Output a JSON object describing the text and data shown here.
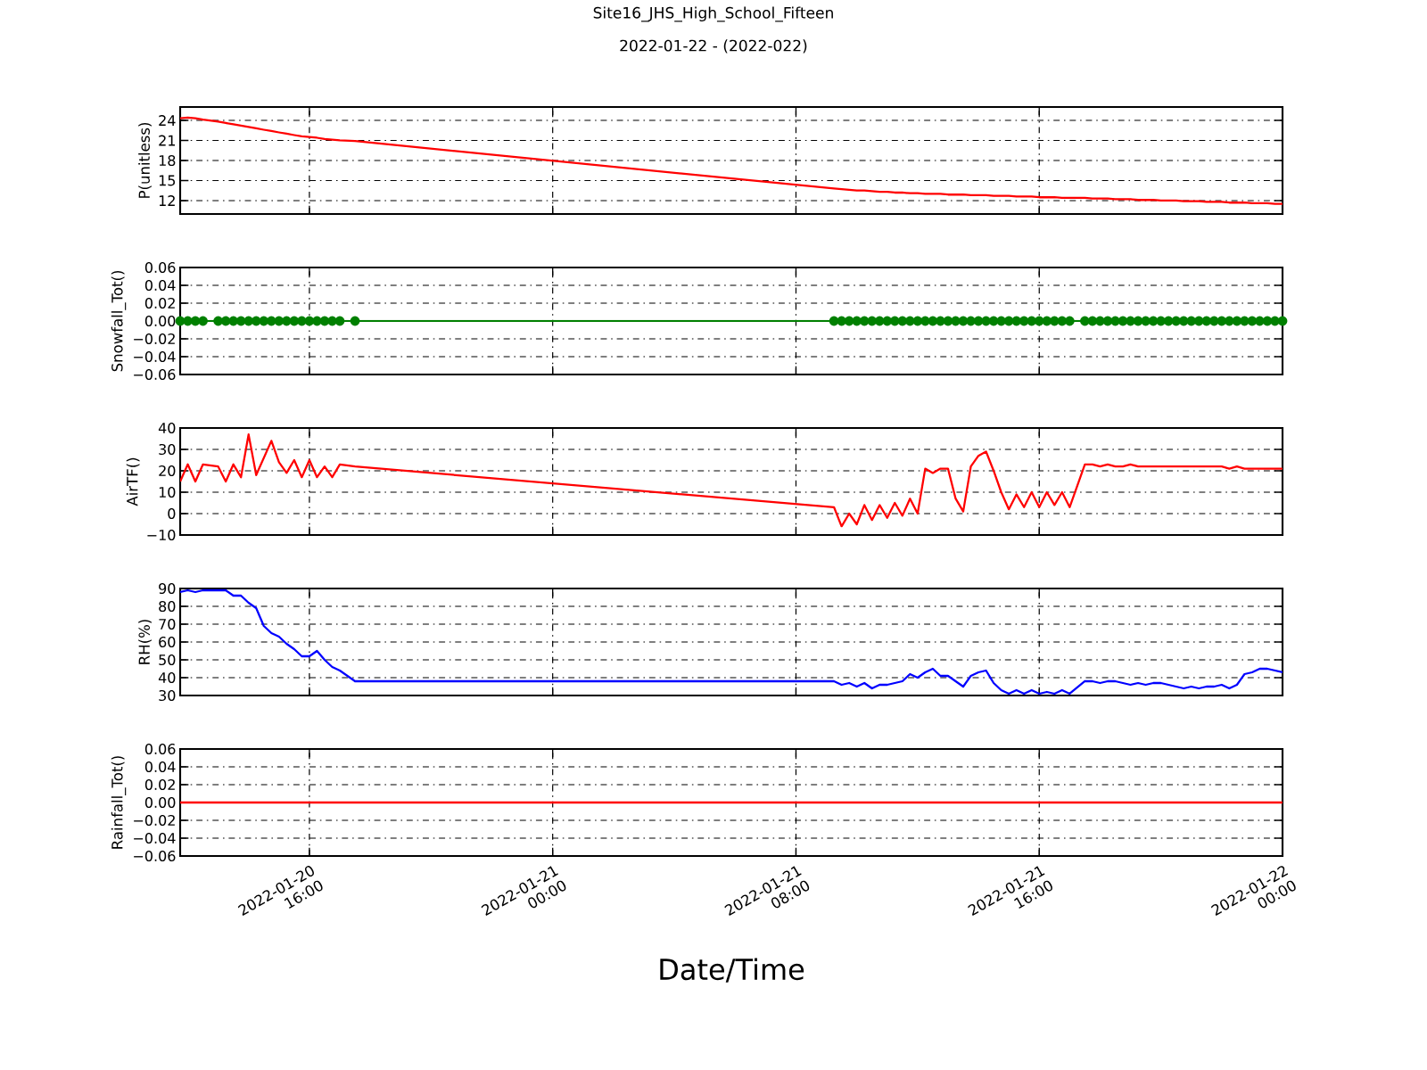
{
  "chart_data": [
    {
      "type": "line",
      "title": "Site16_JHS_High_School_Fifteen",
      "subtitle": "2022-01-22 - (2022-022)",
      "ylabel": "P(unitless)",
      "x": [
        "2022-01-20T11:45",
        "2022-01-20T12:00",
        "2022-01-20T12:15",
        "2022-01-20T12:30",
        "2022-01-20T13:00",
        "2022-01-20T13:15",
        "2022-01-20T13:30",
        "2022-01-20T13:45",
        "2022-01-20T14:00",
        "2022-01-20T14:15",
        "2022-01-20T14:30",
        "2022-01-20T14:45",
        "2022-01-20T15:00",
        "2022-01-20T15:15",
        "2022-01-20T15:30",
        "2022-01-20T15:45",
        "2022-01-20T16:00",
        "2022-01-20T16:15",
        "2022-01-20T16:30",
        "2022-01-20T16:45",
        "2022-01-20T17:00",
        "2022-01-20T17:30",
        "2022-01-21T09:15",
        "2022-01-21T09:30",
        "2022-01-21T09:45",
        "2022-01-21T10:00",
        "2022-01-21T10:15",
        "2022-01-21T10:30",
        "2022-01-21T10:45",
        "2022-01-21T11:00",
        "2022-01-21T11:15",
        "2022-01-21T11:30",
        "2022-01-21T11:45",
        "2022-01-21T12:00",
        "2022-01-21T12:15",
        "2022-01-21T12:30",
        "2022-01-21T12:45",
        "2022-01-21T13:00",
        "2022-01-21T13:15",
        "2022-01-21T13:30",
        "2022-01-21T13:45",
        "2022-01-21T14:00",
        "2022-01-21T14:15",
        "2022-01-21T14:30",
        "2022-01-21T14:45",
        "2022-01-21T15:00",
        "2022-01-21T15:15",
        "2022-01-21T15:30",
        "2022-01-21T15:45",
        "2022-01-21T16:00",
        "2022-01-21T16:15",
        "2022-01-21T16:30",
        "2022-01-21T16:45",
        "2022-01-21T17:00",
        "2022-01-21T17:30",
        "2022-01-21T17:45",
        "2022-01-21T18:00",
        "2022-01-21T18:15",
        "2022-01-21T18:30",
        "2022-01-21T18:45",
        "2022-01-21T19:00",
        "2022-01-21T19:15",
        "2022-01-21T19:30",
        "2022-01-21T19:45",
        "2022-01-21T20:00",
        "2022-01-21T20:15",
        "2022-01-21T20:30",
        "2022-01-21T20:45",
        "2022-01-21T21:00",
        "2022-01-21T21:15",
        "2022-01-21T21:30",
        "2022-01-21T21:45",
        "2022-01-21T22:00",
        "2022-01-21T22:15",
        "2022-01-21T22:30",
        "2022-01-21T22:45",
        "2022-01-21T23:00",
        "2022-01-21T23:15",
        "2022-01-21T23:30",
        "2022-01-21T23:45",
        "2022-01-22T00:00"
      ],
      "series": [
        {
          "color": "#ff0000",
          "values": [
            24.3,
            24.4,
            24.3,
            24.1,
            23.8,
            23.6,
            23.4,
            23.2,
            23.0,
            22.8,
            22.6,
            22.4,
            22.2,
            22.0,
            21.8,
            21.6,
            21.5,
            21.4,
            21.2,
            21.1,
            21.0,
            20.9,
            13.8,
            13.7,
            13.6,
            13.5,
            13.5,
            13.4,
            13.3,
            13.3,
            13.2,
            13.2,
            13.1,
            13.1,
            13.0,
            13.0,
            13.0,
            12.9,
            12.9,
            12.9,
            12.8,
            12.8,
            12.8,
            12.7,
            12.7,
            12.7,
            12.6,
            12.6,
            12.6,
            12.5,
            12.5,
            12.5,
            12.4,
            12.4,
            12.4,
            12.3,
            12.3,
            12.3,
            12.2,
            12.2,
            12.2,
            12.1,
            12.1,
            12.1,
            12.0,
            12.0,
            12.0,
            11.9,
            11.9,
            11.9,
            11.8,
            11.8,
            11.8,
            11.7,
            11.7,
            11.7,
            11.6,
            11.6,
            11.6,
            11.5,
            11.5
          ]
        }
      ],
      "xlim": [
        "2022-01-20T11:45",
        "2022-01-22T00:00"
      ],
      "xticks": [
        "2022-01-20T16:00",
        "2022-01-21T00:00",
        "2022-01-21T08:00",
        "2022-01-21T16:00",
        "2022-01-22T00:00"
      ],
      "ylim": [
        10,
        26
      ],
      "yticks": [
        12,
        15,
        18,
        21,
        24
      ],
      "grid": true,
      "tick_labels": "y"
    },
    {
      "type": "line",
      "ylabel": "Snowfall_Tot()",
      "marker": "circle",
      "x": [
        "2022-01-20T11:45",
        "2022-01-20T12:00",
        "2022-01-20T12:15",
        "2022-01-20T12:30",
        "2022-01-20T13:00",
        "2022-01-20T13:15",
        "2022-01-20T13:30",
        "2022-01-20T13:45",
        "2022-01-20T14:00",
        "2022-01-20T14:15",
        "2022-01-20T14:30",
        "2022-01-20T14:45",
        "2022-01-20T15:00",
        "2022-01-20T15:15",
        "2022-01-20T15:30",
        "2022-01-20T15:45",
        "2022-01-20T16:00",
        "2022-01-20T16:15",
        "2022-01-20T16:30",
        "2022-01-20T16:45",
        "2022-01-20T17:00",
        "2022-01-20T17:30",
        "2022-01-21T09:15",
        "2022-01-21T09:30",
        "2022-01-21T09:45",
        "2022-01-21T10:00",
        "2022-01-21T10:15",
        "2022-01-21T10:30",
        "2022-01-21T10:45",
        "2022-01-21T11:00",
        "2022-01-21T11:15",
        "2022-01-21T11:30",
        "2022-01-21T11:45",
        "2022-01-21T12:00",
        "2022-01-21T12:15",
        "2022-01-21T12:30",
        "2022-01-21T12:45",
        "2022-01-21T13:00",
        "2022-01-21T13:15",
        "2022-01-21T13:30",
        "2022-01-21T13:45",
        "2022-01-21T14:00",
        "2022-01-21T14:15",
        "2022-01-21T14:30",
        "2022-01-21T14:45",
        "2022-01-21T15:00",
        "2022-01-21T15:15",
        "2022-01-21T15:30",
        "2022-01-21T15:45",
        "2022-01-21T16:00",
        "2022-01-21T16:15",
        "2022-01-21T16:30",
        "2022-01-21T16:45",
        "2022-01-21T17:00",
        "2022-01-21T17:30",
        "2022-01-21T17:45",
        "2022-01-21T18:00",
        "2022-01-21T18:15",
        "2022-01-21T18:30",
        "2022-01-21T18:45",
        "2022-01-21T19:00",
        "2022-01-21T19:15",
        "2022-01-21T19:30",
        "2022-01-21T19:45",
        "2022-01-21T20:00",
        "2022-01-21T20:15",
        "2022-01-21T20:30",
        "2022-01-21T20:45",
        "2022-01-21T21:00",
        "2022-01-21T21:15",
        "2022-01-21T21:30",
        "2022-01-21T21:45",
        "2022-01-21T22:00",
        "2022-01-21T22:15",
        "2022-01-21T22:30",
        "2022-01-21T22:45",
        "2022-01-21T23:00",
        "2022-01-21T23:15",
        "2022-01-21T23:30",
        "2022-01-21T23:45",
        "2022-01-22T00:00"
      ],
      "series": [
        {
          "color": "#008000",
          "values": [
            0,
            0,
            0,
            0,
            0,
            0,
            0,
            0,
            0,
            0,
            0,
            0,
            0,
            0,
            0,
            0,
            0,
            0,
            0,
            0,
            0,
            0,
            0,
            0,
            0,
            0,
            0,
            0,
            0,
            0,
            0,
            0,
            0,
            0,
            0,
            0,
            0,
            0,
            0,
            0,
            0,
            0,
            0,
            0,
            0,
            0,
            0,
            0,
            0,
            0,
            0,
            0,
            0,
            0,
            0,
            0,
            0,
            0,
            0,
            0,
            0,
            0,
            0,
            0,
            0,
            0,
            0,
            0,
            0,
            0,
            0,
            0,
            0,
            0,
            0,
            0,
            0,
            0,
            0,
            0,
            0
          ]
        }
      ],
      "xlim": [
        "2022-01-20T11:45",
        "2022-01-22T00:00"
      ],
      "xticks": [
        "2022-01-20T16:00",
        "2022-01-21T00:00",
        "2022-01-21T08:00",
        "2022-01-21T16:00",
        "2022-01-22T00:00"
      ],
      "ylim": [
        -0.06,
        0.06
      ],
      "yticks": [
        {
          "value": -0.06,
          "label": "−0.06"
        },
        {
          "value": -0.04,
          "label": "−0.04"
        },
        {
          "value": -0.02,
          "label": "−0.02"
        },
        {
          "value": 0,
          "label": "0.00"
        },
        {
          "value": 0.02,
          "label": "0.02"
        },
        {
          "value": 0.04,
          "label": "0.04"
        },
        {
          "value": 0.06,
          "label": "0.06"
        }
      ],
      "grid": true,
      "tick_labels": "y"
    },
    {
      "type": "line",
      "ylabel": "AirTF()",
      "x": [
        "2022-01-20T11:45",
        "2022-01-20T12:00",
        "2022-01-20T12:15",
        "2022-01-20T12:30",
        "2022-01-20T13:00",
        "2022-01-20T13:15",
        "2022-01-20T13:30",
        "2022-01-20T13:45",
        "2022-01-20T14:00",
        "2022-01-20T14:15",
        "2022-01-20T14:30",
        "2022-01-20T14:45",
        "2022-01-20T15:00",
        "2022-01-20T15:15",
        "2022-01-20T15:30",
        "2022-01-20T15:45",
        "2022-01-20T16:00",
        "2022-01-20T16:15",
        "2022-01-20T16:30",
        "2022-01-20T16:45",
        "2022-01-20T17:00",
        "2022-01-20T17:30",
        "2022-01-21T09:15",
        "2022-01-21T09:30",
        "2022-01-21T09:45",
        "2022-01-21T10:00",
        "2022-01-21T10:15",
        "2022-01-21T10:30",
        "2022-01-21T10:45",
        "2022-01-21T11:00",
        "2022-01-21T11:15",
        "2022-01-21T11:30",
        "2022-01-21T11:45",
        "2022-01-21T12:00",
        "2022-01-21T12:15",
        "2022-01-21T12:30",
        "2022-01-21T12:45",
        "2022-01-21T13:00",
        "2022-01-21T13:15",
        "2022-01-21T13:30",
        "2022-01-21T13:45",
        "2022-01-21T14:00",
        "2022-01-21T14:15",
        "2022-01-21T14:30",
        "2022-01-21T14:45",
        "2022-01-21T15:00",
        "2022-01-21T15:15",
        "2022-01-21T15:30",
        "2022-01-21T15:45",
        "2022-01-21T16:00",
        "2022-01-21T16:15",
        "2022-01-21T16:30",
        "2022-01-21T16:45",
        "2022-01-21T17:00",
        "2022-01-21T17:30",
        "2022-01-21T17:45",
        "2022-01-21T18:00",
        "2022-01-21T18:15",
        "2022-01-21T18:30",
        "2022-01-21T18:45",
        "2022-01-21T19:00",
        "2022-01-21T19:15",
        "2022-01-21T19:30",
        "2022-01-21T19:45",
        "2022-01-21T20:00",
        "2022-01-21T20:15",
        "2022-01-21T20:30",
        "2022-01-21T20:45",
        "2022-01-21T21:00",
        "2022-01-21T21:15",
        "2022-01-21T21:30",
        "2022-01-21T21:45",
        "2022-01-21T22:00",
        "2022-01-21T22:15",
        "2022-01-21T22:30",
        "2022-01-21T22:45",
        "2022-01-21T23:00",
        "2022-01-21T23:15",
        "2022-01-21T23:30",
        "2022-01-21T23:45",
        "2022-01-22T00:00"
      ],
      "series": [
        {
          "color": "#ff0000",
          "values": [
            15,
            23,
            15,
            23,
            22,
            15,
            23,
            17,
            37,
            18,
            26,
            34,
            24,
            19,
            25,
            17,
            25,
            17,
            22,
            17,
            23,
            22,
            3,
            -6,
            0,
            -5,
            4,
            -3,
            4,
            -2,
            5,
            -1,
            7,
            0,
            21,
            19,
            21,
            21,
            7,
            1,
            22,
            27,
            29,
            20,
            10,
            2,
            9,
            3,
            10,
            3,
            10,
            4,
            10,
            3,
            23,
            23,
            22,
            23,
            22,
            22,
            23,
            22,
            22,
            22,
            22,
            22,
            22,
            22,
            22,
            22,
            22,
            22,
            22,
            21,
            22,
            21,
            21,
            21,
            21,
            21,
            21
          ]
        }
      ],
      "xlim": [
        "2022-01-20T11:45",
        "2022-01-22T00:00"
      ],
      "xticks": [
        "2022-01-20T16:00",
        "2022-01-21T00:00",
        "2022-01-21T08:00",
        "2022-01-21T16:00",
        "2022-01-22T00:00"
      ],
      "ylim": [
        -10,
        40
      ],
      "yticks": [
        {
          "value": -10,
          "label": "−10"
        },
        0,
        10,
        20,
        30,
        40
      ],
      "grid": true,
      "tick_labels": "y"
    },
    {
      "type": "line",
      "ylabel": "RH(%)",
      "x": [
        "2022-01-20T11:45",
        "2022-01-20T12:00",
        "2022-01-20T12:15",
        "2022-01-20T12:30",
        "2022-01-20T13:00",
        "2022-01-20T13:15",
        "2022-01-20T13:30",
        "2022-01-20T13:45",
        "2022-01-20T14:00",
        "2022-01-20T14:15",
        "2022-01-20T14:30",
        "2022-01-20T14:45",
        "2022-01-20T15:00",
        "2022-01-20T15:15",
        "2022-01-20T15:30",
        "2022-01-20T15:45",
        "2022-01-20T16:00",
        "2022-01-20T16:15",
        "2022-01-20T16:30",
        "2022-01-20T16:45",
        "2022-01-20T17:00",
        "2022-01-20T17:30",
        "2022-01-21T09:15",
        "2022-01-21T09:30",
        "2022-01-21T09:45",
        "2022-01-21T10:00",
        "2022-01-21T10:15",
        "2022-01-21T10:30",
        "2022-01-21T10:45",
        "2022-01-21T11:00",
        "2022-01-21T11:15",
        "2022-01-21T11:30",
        "2022-01-21T11:45",
        "2022-01-21T12:00",
        "2022-01-21T12:15",
        "2022-01-21T12:30",
        "2022-01-21T12:45",
        "2022-01-21T13:00",
        "2022-01-21T13:15",
        "2022-01-21T13:30",
        "2022-01-21T13:45",
        "2022-01-21T14:00",
        "2022-01-21T14:15",
        "2022-01-21T14:30",
        "2022-01-21T14:45",
        "2022-01-21T15:00",
        "2022-01-21T15:15",
        "2022-01-21T15:30",
        "2022-01-21T15:45",
        "2022-01-21T16:00",
        "2022-01-21T16:15",
        "2022-01-21T16:30",
        "2022-01-21T16:45",
        "2022-01-21T17:00",
        "2022-01-21T17:30",
        "2022-01-21T17:45",
        "2022-01-21T18:00",
        "2022-01-21T18:15",
        "2022-01-21T18:30",
        "2022-01-21T18:45",
        "2022-01-21T19:00",
        "2022-01-21T19:15",
        "2022-01-21T19:30",
        "2022-01-21T19:45",
        "2022-01-21T20:00",
        "2022-01-21T20:15",
        "2022-01-21T20:30",
        "2022-01-21T20:45",
        "2022-01-21T21:00",
        "2022-01-21T21:15",
        "2022-01-21T21:30",
        "2022-01-21T21:45",
        "2022-01-21T22:00",
        "2022-01-21T22:15",
        "2022-01-21T22:30",
        "2022-01-21T22:45",
        "2022-01-21T23:00",
        "2022-01-21T23:15",
        "2022-01-21T23:30",
        "2022-01-21T23:45",
        "2022-01-22T00:00"
      ],
      "series": [
        {
          "color": "#0000ff",
          "values": [
            88,
            89,
            88,
            89,
            89,
            89,
            86,
            86,
            82,
            79,
            69,
            65,
            63,
            59,
            56,
            52,
            52,
            55,
            50,
            46,
            44,
            38,
            38,
            36,
            37,
            35,
            37,
            34,
            36,
            36,
            37,
            38,
            42,
            40,
            43,
            45,
            41,
            41,
            38,
            35,
            41,
            43,
            44,
            37,
            33,
            31,
            33,
            31,
            33,
            31,
            32,
            31,
            33,
            31,
            38,
            38,
            37,
            38,
            38,
            37,
            36,
            37,
            36,
            37,
            37,
            36,
            35,
            34,
            35,
            34,
            35,
            35,
            36,
            34,
            36,
            42,
            43,
            45,
            45,
            44,
            43
          ]
        }
      ],
      "xlim": [
        "2022-01-20T11:45",
        "2022-01-22T00:00"
      ],
      "xticks": [
        "2022-01-20T16:00",
        "2022-01-21T00:00",
        "2022-01-21T08:00",
        "2022-01-21T16:00",
        "2022-01-22T00:00"
      ],
      "ylim": [
        30,
        90
      ],
      "yticks": [
        30,
        40,
        50,
        60,
        70,
        80,
        90
      ],
      "grid": true,
      "tick_labels": "y"
    },
    {
      "type": "line",
      "ylabel": "Rainfall_Tot()",
      "xlabel": "Date/Time",
      "x": [
        "2022-01-20T11:45",
        "2022-01-20T12:00",
        "2022-01-20T12:15",
        "2022-01-20T12:30",
        "2022-01-20T13:00",
        "2022-01-20T13:15",
        "2022-01-20T13:30",
        "2022-01-20T13:45",
        "2022-01-20T14:00",
        "2022-01-20T14:15",
        "2022-01-20T14:30",
        "2022-01-20T14:45",
        "2022-01-20T15:00",
        "2022-01-20T15:15",
        "2022-01-20T15:30",
        "2022-01-20T15:45",
        "2022-01-20T16:00",
        "2022-01-20T16:15",
        "2022-01-20T16:30",
        "2022-01-20T16:45",
        "2022-01-20T17:00",
        "2022-01-20T17:30",
        "2022-01-21T09:15",
        "2022-01-21T09:30",
        "2022-01-21T09:45",
        "2022-01-21T10:00",
        "2022-01-21T10:15",
        "2022-01-21T10:30",
        "2022-01-21T10:45",
        "2022-01-21T11:00",
        "2022-01-21T11:15",
        "2022-01-21T11:30",
        "2022-01-21T11:45",
        "2022-01-21T12:00",
        "2022-01-21T12:15",
        "2022-01-21T12:30",
        "2022-01-21T12:45",
        "2022-01-21T13:00",
        "2022-01-21T13:15",
        "2022-01-21T13:30",
        "2022-01-21T13:45",
        "2022-01-21T14:00",
        "2022-01-21T14:15",
        "2022-01-21T14:30",
        "2022-01-21T14:45",
        "2022-01-21T15:00",
        "2022-01-21T15:15",
        "2022-01-21T15:30",
        "2022-01-21T15:45",
        "2022-01-21T16:00",
        "2022-01-21T16:15",
        "2022-01-21T16:30",
        "2022-01-21T16:45",
        "2022-01-21T17:00",
        "2022-01-21T17:30",
        "2022-01-21T17:45",
        "2022-01-21T18:00",
        "2022-01-21T18:15",
        "2022-01-21T18:30",
        "2022-01-21T18:45",
        "2022-01-21T19:00",
        "2022-01-21T19:15",
        "2022-01-21T19:30",
        "2022-01-21T19:45",
        "2022-01-21T20:00",
        "2022-01-21T20:15",
        "2022-01-21T20:30",
        "2022-01-21T20:45",
        "2022-01-21T21:00",
        "2022-01-21T21:15",
        "2022-01-21T21:30",
        "2022-01-21T21:45",
        "2022-01-21T22:00",
        "2022-01-21T22:15",
        "2022-01-21T22:30",
        "2022-01-21T22:45",
        "2022-01-21T23:00",
        "2022-01-21T23:15",
        "2022-01-21T23:30",
        "2022-01-21T23:45",
        "2022-01-22T00:00"
      ],
      "series": [
        {
          "color": "#ff0000",
          "values": [
            0,
            0,
            0,
            0,
            0,
            0,
            0,
            0,
            0,
            0,
            0,
            0,
            0,
            0,
            0,
            0,
            0,
            0,
            0,
            0,
            0,
            0,
            0,
            0,
            0,
            0,
            0,
            0,
            0,
            0,
            0,
            0,
            0,
            0,
            0,
            0,
            0,
            0,
            0,
            0,
            0,
            0,
            0,
            0,
            0,
            0,
            0,
            0,
            0,
            0,
            0,
            0,
            0,
            0,
            0,
            0,
            0,
            0,
            0,
            0,
            0,
            0,
            0,
            0,
            0,
            0,
            0,
            0,
            0,
            0,
            0,
            0,
            0,
            0,
            0,
            0,
            0,
            0,
            0,
            0,
            0
          ]
        }
      ],
      "xlim": [
        "2022-01-20T11:45",
        "2022-01-22T00:00"
      ],
      "xticks": [
        {
          "value": "2022-01-20T16:00",
          "label": "2022-01-20 16:00"
        },
        {
          "value": "2022-01-21T00:00",
          "label": "2022-01-21 00:00"
        },
        {
          "value": "2022-01-21T08:00",
          "label": "2022-01-21 08:00"
        },
        {
          "value": "2022-01-21T16:00",
          "label": "2022-01-21 16:00"
        },
        {
          "value": "2022-01-22T00:00",
          "label": "2022-01-22 00:00"
        }
      ],
      "ylim": [
        -0.06,
        0.06
      ],
      "yticks": [
        {
          "value": -0.06,
          "label": "−0.06"
        },
        {
          "value": -0.04,
          "label": "−0.04"
        },
        {
          "value": -0.02,
          "label": "−0.02"
        },
        {
          "value": 0,
          "label": "0.00"
        },
        {
          "value": 0.02,
          "label": "0.02"
        },
        {
          "value": 0.04,
          "label": "0.04"
        },
        {
          "value": 0.06,
          "label": "0.06"
        }
      ],
      "grid": true
    }
  ]
}
